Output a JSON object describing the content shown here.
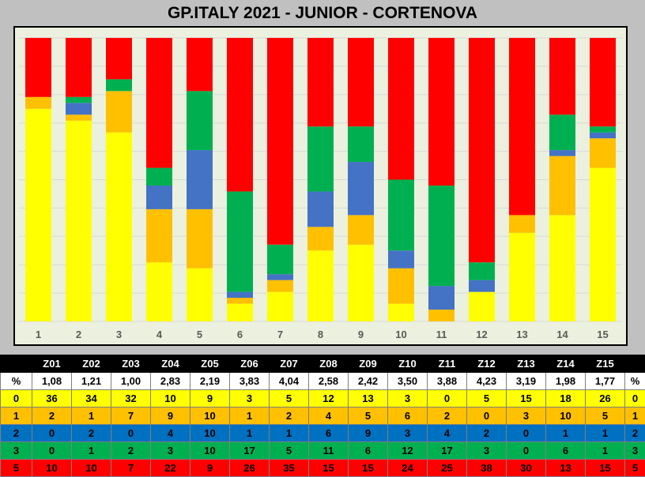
{
  "title": "GP.ITALY 2021 - JUNIOR - CORTENOVA",
  "chart_data": {
    "type": "bar",
    "stacked": "100%",
    "categories": [
      "1",
      "2",
      "3",
      "4",
      "5",
      "6",
      "7",
      "8",
      "9",
      "10",
      "11",
      "12",
      "13",
      "14",
      "15"
    ],
    "series": [
      {
        "name": "0",
        "color": "#ffff00",
        "values": [
          36,
          34,
          32,
          10,
          9,
          3,
          5,
          12,
          13,
          3,
          0,
          5,
          15,
          18,
          26
        ]
      },
      {
        "name": "1",
        "color": "#ffc000",
        "values": [
          2,
          1,
          7,
          9,
          10,
          1,
          2,
          4,
          5,
          6,
          2,
          0,
          3,
          10,
          5
        ]
      },
      {
        "name": "2",
        "color": "#4472c4",
        "values": [
          0,
          2,
          0,
          4,
          10,
          1,
          1,
          6,
          9,
          3,
          4,
          2,
          0,
          1,
          1
        ]
      },
      {
        "name": "3",
        "color": "#00b050",
        "values": [
          0,
          1,
          2,
          3,
          10,
          17,
          5,
          11,
          6,
          12,
          17,
          3,
          0,
          6,
          1
        ]
      },
      {
        "name": "5",
        "color": "#ff0000",
        "values": [
          10,
          10,
          7,
          22,
          9,
          26,
          35,
          15,
          15,
          24,
          25,
          38,
          30,
          13,
          15
        ]
      }
    ],
    "grid": true,
    "legend": "none"
  },
  "table": {
    "header": [
      "",
      "Z01",
      "Z02",
      "Z03",
      "Z04",
      "Z05",
      "Z06",
      "Z07",
      "Z08",
      "Z09",
      "Z10",
      "Z11",
      "Z12",
      "Z13",
      "Z14",
      "Z15",
      ""
    ],
    "rows": [
      {
        "cells": [
          "%",
          "1,08",
          "1,21",
          "1,00",
          "2,83",
          "2,19",
          "3,83",
          "4,04",
          "2,58",
          "2,42",
          "3,50",
          "3,88",
          "4,23",
          "3,19",
          "1,98",
          "1,77",
          "%"
        ],
        "bg": "#ffffff",
        "fg": "#000000"
      },
      {
        "cells": [
          "0",
          "36",
          "34",
          "32",
          "10",
          "9",
          "3",
          "5",
          "12",
          "13",
          "3",
          "0",
          "5",
          "15",
          "18",
          "26",
          "0"
        ],
        "bg": "#ffff00",
        "fg": "#000000"
      },
      {
        "cells": [
          "1",
          "2",
          "1",
          "7",
          "9",
          "10",
          "1",
          "2",
          "4",
          "5",
          "6",
          "2",
          "0",
          "3",
          "10",
          "5",
          "1"
        ],
        "bg": "#ffc000",
        "fg": "#000000"
      },
      {
        "cells": [
          "2",
          "0",
          "2",
          "0",
          "4",
          "10",
          "1",
          "1",
          "6",
          "9",
          "3",
          "4",
          "2",
          "0",
          "1",
          "1",
          "2"
        ],
        "bg": "#0070c0",
        "fg": "#000000"
      },
      {
        "cells": [
          "3",
          "0",
          "1",
          "2",
          "3",
          "10",
          "17",
          "5",
          "11",
          "6",
          "12",
          "17",
          "3",
          "0",
          "6",
          "1",
          "3"
        ],
        "bg": "#00b050",
        "fg": "#000000"
      },
      {
        "cells": [
          "5",
          "10",
          "10",
          "7",
          "22",
          "9",
          "26",
          "35",
          "15",
          "15",
          "24",
          "25",
          "38",
          "30",
          "13",
          "15",
          "5"
        ],
        "bg": "#ff0000",
        "fg": "#000000"
      }
    ]
  }
}
